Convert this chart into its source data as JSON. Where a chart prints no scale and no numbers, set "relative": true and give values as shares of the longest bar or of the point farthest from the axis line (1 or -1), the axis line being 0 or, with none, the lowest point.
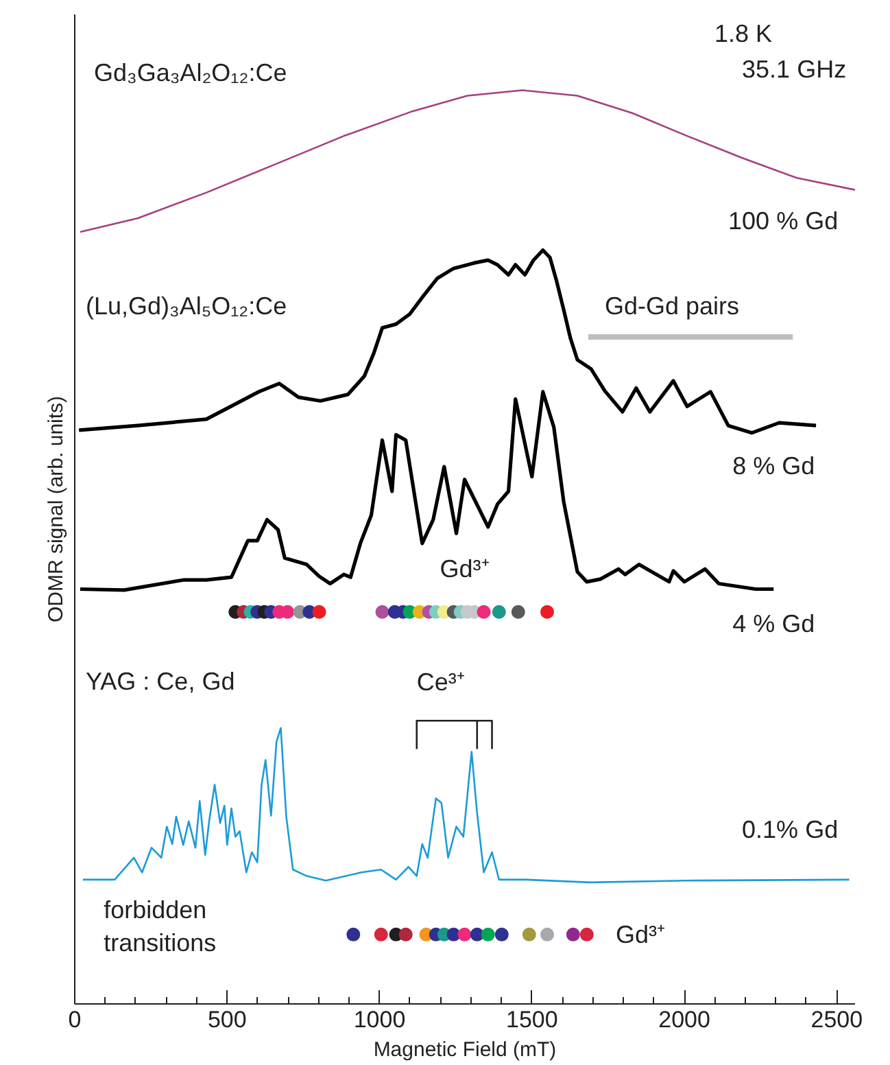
{
  "chart_data": {
    "type": "line",
    "relative": true,
    "xlabel": "Magnetic Field (mT)",
    "ylabel": "ODMR signal (arb. units)",
    "xlim": [
      0,
      2560
    ],
    "xticks": [
      0,
      {
        "value": 100,
        "label": null
      },
      {
        "value": 200,
        "label": null
      },
      {
        "value": 300,
        "label": null
      },
      {
        "value": 400,
        "label": null
      },
      500,
      {
        "value": 600,
        "label": null
      },
      {
        "value": 700,
        "label": null
      },
      {
        "value": 800,
        "label": null
      },
      {
        "value": 900,
        "label": null
      },
      1000,
      {
        "value": 1100,
        "label": null
      },
      {
        "value": 1200,
        "label": null
      },
      {
        "value": 1300,
        "label": null
      },
      {
        "value": 1400,
        "label": null
      },
      1500,
      {
        "value": 1600,
        "label": null
      },
      {
        "value": 1700,
        "label": null
      },
      {
        "value": 1800,
        "label": null
      },
      {
        "value": 1900,
        "label": null
      },
      2000,
      {
        "value": 2100,
        "label": null
      },
      {
        "value": 2200,
        "label": null
      },
      {
        "value": 2300,
        "label": null
      },
      {
        "value": 2400,
        "label": null
      },
      2500
    ],
    "grid": false,
    "series": [
      {
        "color": "#a5407e",
        "x": [
          18,
          207,
          432,
          658,
          883,
          1108,
          1288,
          1468,
          1649,
          1829,
          2009,
          2189,
          2369,
          2560
        ],
        "values": [
          0.845,
          0.86,
          0.888,
          0.919,
          0.95,
          0.977,
          0.994,
          1.0,
          0.994,
          0.975,
          0.95,
          0.926,
          0.904,
          0.891
        ]
      },
      {
        "color": "#000000",
        "x": [
          14,
          207,
          432,
          604,
          671,
          734,
          806,
          896,
          950,
          982,
          1009,
          1054,
          1099,
          1144,
          1189,
          1243,
          1311,
          1356,
          1387,
          1423,
          1446,
          1477,
          1505,
          1536,
          1559,
          1581,
          1604,
          1626,
          1649,
          1694,
          1739,
          1797,
          1842,
          1887,
          1964,
          2009,
          2086,
          2144,
          2221,
          2311,
          2432
        ],
        "values": [
          0.628,
          0.633,
          0.64,
          0.67,
          0.679,
          0.664,
          0.66,
          0.667,
          0.687,
          0.713,
          0.74,
          0.744,
          0.755,
          0.775,
          0.794,
          0.805,
          0.811,
          0.814,
          0.809,
          0.798,
          0.809,
          0.798,
          0.814,
          0.825,
          0.817,
          0.791,
          0.76,
          0.729,
          0.705,
          0.695,
          0.671,
          0.648,
          0.674,
          0.648,
          0.682,
          0.654,
          0.67,
          0.633,
          0.625,
          0.636,
          0.633
        ]
      },
      {
        "color": "#bcbec0",
        "x": [
          1685,
          2356
        ],
        "values": [
          0.73,
          0.73
        ]
      },
      {
        "color": "#000000",
        "x": [
          18,
          162,
          356,
          432,
          514,
          568,
          599,
          631,
          667,
          689,
          761,
          802,
          838,
          883,
          905,
          937,
          973,
          1009,
          1041,
          1054,
          1086,
          1140,
          1176,
          1212,
          1252,
          1279,
          1356,
          1387,
          1423,
          1446,
          1500,
          1536,
          1572,
          1604,
          1649,
          1680,
          1725,
          1784,
          1806,
          1851,
          1950,
          1964,
          2000,
          2068,
          2113,
          2234,
          2293
        ],
        "values": [
          0.454,
          0.453,
          0.464,
          0.464,
          0.467,
          0.507,
          0.507,
          0.53,
          0.519,
          0.488,
          0.481,
          0.468,
          0.46,
          0.47,
          0.467,
          0.504,
          0.535,
          0.617,
          0.561,
          0.623,
          0.617,
          0.504,
          0.53,
          0.588,
          0.515,
          0.574,
          0.522,
          0.547,
          0.561,
          0.662,
          0.577,
          0.67,
          0.631,
          0.55,
          0.473,
          0.462,
          0.465,
          0.476,
          0.47,
          0.481,
          0.462,
          0.474,
          0.462,
          0.476,
          0.46,
          0.454,
          0.454
        ]
      },
      {
        "type": "scatter",
        "marker": "circle",
        "x": [
          527,
          554,
          577,
          599,
          622,
          644,
          671,
          698,
          739,
          770,
          802,
          1009,
          1050,
          1077,
          1099,
          1131,
          1162,
          1185,
          1212,
          1243,
          1266,
          1288,
          1311,
          1342,
          1392,
          1455,
          1550
        ],
        "values": [
          0.429,
          0.429,
          0.429,
          0.429,
          0.429,
          0.429,
          0.429,
          0.429,
          0.429,
          0.429,
          0.429,
          0.429,
          0.429,
          0.429,
          0.429,
          0.429,
          0.429,
          0.429,
          0.429,
          0.429,
          0.429,
          0.429,
          0.429,
          0.429,
          0.429,
          0.429,
          0.429
        ],
        "colors": [
          "#231f20",
          "#b0283c",
          "#2bb3a0",
          "#2e3192",
          "#231f20",
          "#2e3192",
          "#ee2a7b",
          "#ee2a7b",
          "#939598",
          "#2e3192",
          "#ed1c24",
          "#b04fa0",
          "#2e3192",
          "#2e3192",
          "#00a651",
          "#e8b21f",
          "#b04fa0",
          "#7ccdc4",
          "#f3ec8a",
          "#58595b",
          "#80cbc4",
          "#c7c8ca",
          "#c7c8ca",
          "#ee2a7b",
          "#1b998b",
          "#58595b",
          "#ed1c24"
        ]
      },
      {
        "color": "#231f20",
        "x": [
          1122,
          1122,
          1369,
          1369
        ],
        "values": [
          0.279,
          0.31,
          0.31,
          0.279
        ]
      },
      {
        "color": "#231f20",
        "x": [
          1320,
          1320
        ],
        "values": [
          0.31,
          0.279
        ]
      },
      {
        "color": "#1c9bd8",
        "x": [
          27,
          131,
          194,
          221,
          252,
          284,
          302,
          320,
          333,
          356,
          374,
          396,
          410,
          428,
          441,
          459,
          477,
          491,
          500,
          514,
          527,
          541,
          563,
          581,
          599,
          613,
          626,
          644,
          662,
          676,
          694,
          716,
          761,
          824,
          941,
          1005,
          1054,
          1095,
          1122,
          1140,
          1158,
          1185,
          1203,
          1225,
          1252,
          1275,
          1302,
          1320,
          1342,
          1369,
          1392,
          1482,
          1689,
          2009,
          2541
        ],
        "values": [
          0.136,
          0.136,
          0.16,
          0.144,
          0.171,
          0.16,
          0.194,
          0.175,
          0.205,
          0.174,
          0.2,
          0.171,
          0.222,
          0.163,
          0.2,
          0.24,
          0.198,
          0.217,
          0.174,
          0.214,
          0.183,
          0.189,
          0.144,
          0.166,
          0.155,
          0.24,
          0.267,
          0.206,
          0.287,
          0.302,
          0.205,
          0.147,
          0.14,
          0.135,
          0.144,
          0.147,
          0.136,
          0.15,
          0.14,
          0.175,
          0.16,
          0.225,
          0.22,
          0.16,
          0.194,
          0.183,
          0.276,
          0.209,
          0.144,
          0.166,
          0.136,
          0.136,
          0.133,
          0.135,
          0.136
        ]
      },
      {
        "type": "scatter",
        "marker": "circle",
        "x": [
          914,
          1005,
          1054,
          1086,
          1153,
          1185,
          1212,
          1243,
          1279,
          1320,
          1356,
          1401,
          1491,
          1550,
          1635,
          1680
        ],
        "values": [
          0.076,
          0.076,
          0.076,
          0.076,
          0.076,
          0.076,
          0.076,
          0.076,
          0.076,
          0.076,
          0.076,
          0.076,
          0.076,
          0.076,
          0.076,
          0.076
        ],
        "colors": [
          "#2e3192",
          "#d7263d",
          "#231f20",
          "#b0283c",
          "#f7941d",
          "#2e3192",
          "#1b998b",
          "#2e3192",
          "#ee2a7b",
          "#2e3192",
          "#00a651",
          "#2e3192",
          "#a19a3c",
          "#a7a9ac",
          "#92278f",
          "#d7263d"
        ]
      }
    ],
    "annotations": [
      "Gd₃Ga₃Al₂O₁₂:Ce",
      "1.8 K",
      "35.1 GHz",
      "100 % Gd",
      "(Lu,Gd)₃Al₅O₁₂:Ce",
      "Gd-Gd pairs",
      "8 % Gd",
      "Gd³⁺",
      "4 % Gd",
      "YAG : Ce, Gd",
      "Ce³⁺",
      "0.1% Gd",
      "forbidden\ntransitions",
      "Gd³⁺"
    ]
  }
}
